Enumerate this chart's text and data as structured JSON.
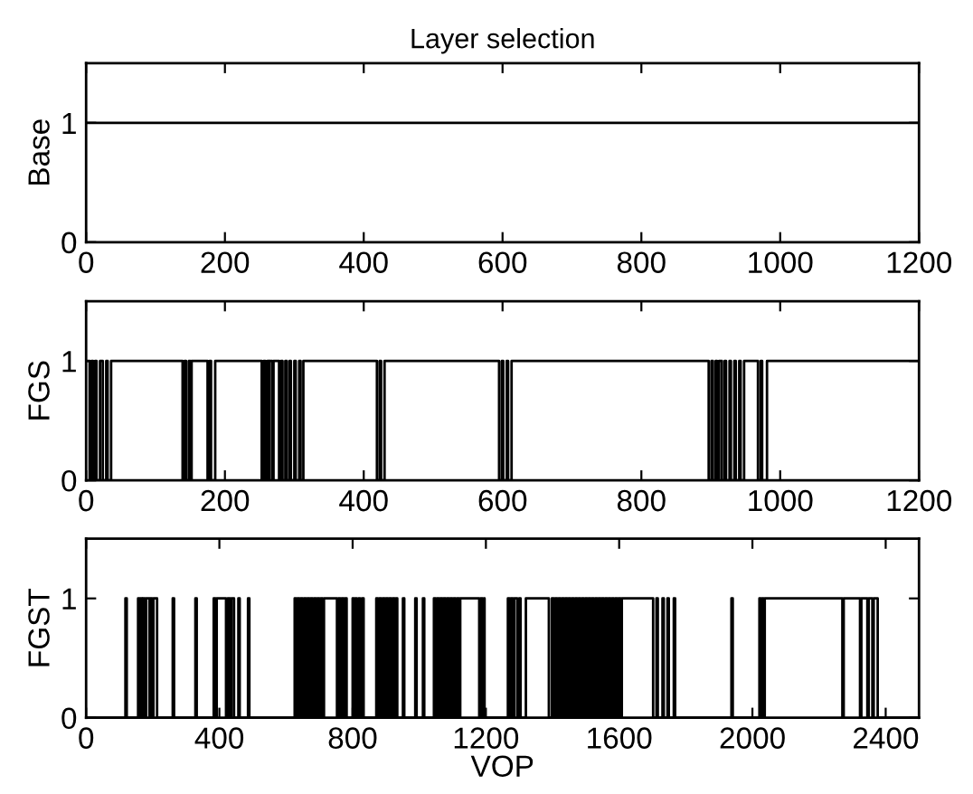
{
  "chart_data": [
    {
      "type": "line",
      "title": "Layer selection",
      "ylabel": "Base",
      "xlim": [
        0,
        1200
      ],
      "xticks": [
        0,
        200,
        400,
        600,
        800,
        1000,
        1200
      ],
      "ylim": [
        0,
        1.5
      ],
      "yticks": [
        0,
        1
      ],
      "grid": false,
      "series": [
        {
          "color": "#000000",
          "x": [
            0,
            1200
          ],
          "values": [
            1,
            1
          ]
        }
      ]
    },
    {
      "type": "step",
      "ylabel": "FGS",
      "xlim": [
        0,
        1200
      ],
      "xticks": [
        0,
        200,
        400,
        600,
        800,
        1000,
        1200
      ],
      "ylim": [
        0,
        1.5
      ],
      "yticks": [
        0,
        1
      ],
      "grid": false,
      "series": [
        {
          "color": "#000000",
          "x": [
            0,
            5,
            8,
            10,
            13,
            15,
            20,
            24,
            29,
            31,
            36,
            139,
            142,
            144,
            148,
            150,
            152,
            175,
            178,
            180,
            186,
            253,
            256,
            258,
            261,
            263,
            264,
            268,
            270,
            278,
            281,
            283,
            287,
            289,
            293,
            295,
            300,
            302,
            307,
            309,
            313,
            419,
            423,
            425,
            430,
            595,
            599,
            601,
            606,
            608,
            613,
            897,
            901,
            903,
            907,
            909,
            912,
            916,
            920,
            922,
            927,
            929,
            934,
            936,
            941,
            943,
            948,
            968,
            972,
            974,
            981,
            1200
          ],
          "values": [
            1,
            0,
            1,
            0,
            1,
            0,
            1,
            0,
            1,
            0,
            1,
            0,
            1,
            0,
            1,
            0,
            1,
            0,
            1,
            0,
            1,
            0,
            1,
            0,
            1,
            0,
            1,
            0,
            1,
            0,
            1,
            0,
            1,
            0,
            1,
            0,
            1,
            0,
            1,
            0,
            1,
            0,
            1,
            0,
            1,
            0,
            1,
            0,
            1,
            0,
            1,
            0,
            1,
            0,
            1,
            0,
            1,
            0,
            1,
            0,
            1,
            0,
            1,
            0,
            1,
            0,
            1,
            0,
            1,
            0,
            1,
            1
          ]
        }
      ]
    },
    {
      "type": "step",
      "ylabel": "FGST",
      "xlabel": "VOP",
      "xlim": [
        0,
        2500
      ],
      "xticks": [
        0,
        400,
        800,
        1200,
        1600,
        2000,
        2400
      ],
      "ylim": [
        0,
        1.5
      ],
      "yticks": [
        0,
        1
      ],
      "grid": false,
      "series": [
        {
          "color": "#000000",
          "x": [
            0,
            118,
            122,
            156,
            160,
            163,
            168,
            170,
            176,
            180,
            190,
            193,
            198,
            202,
            213,
            260,
            264,
            328,
            332,
            383,
            388,
            392,
            420,
            425,
            432,
            436,
            444,
            457,
            461,
            486,
            490,
            626,
            630,
            634,
            640,
            644,
            650,
            654,
            660,
            664,
            670,
            674,
            680,
            684,
            690,
            694,
            700,
            704,
            710,
            714,
            753,
            757,
            763,
            767,
            773,
            777,
            782,
            800,
            804,
            808,
            812,
            818,
            822,
            828,
            833,
            871,
            876,
            880,
            886,
            890,
            896,
            900,
            906,
            910,
            916,
            920,
            926,
            930,
            934,
            951,
            955,
            988,
            992,
            1011,
            1015,
            1044,
            1049,
            1053,
            1059,
            1063,
            1069,
            1073,
            1079,
            1083,
            1089,
            1093,
            1099,
            1103,
            1109,
            1113,
            1119,
            1123,
            1180,
            1184,
            1190,
            1194,
            1196,
            1266,
            1271,
            1275,
            1281,
            1285,
            1294,
            1300,
            1304,
            1320,
            1389,
            1398,
            1404,
            1408,
            1414,
            1418,
            1424,
            1428,
            1434,
            1438,
            1444,
            1448,
            1454,
            1458,
            1464,
            1468,
            1474,
            1478,
            1484,
            1488,
            1494,
            1498,
            1504,
            1508,
            1514,
            1518,
            1524,
            1528,
            1534,
            1538,
            1544,
            1548,
            1554,
            1558,
            1564,
            1568,
            1574,
            1578,
            1584,
            1588,
            1594,
            1598,
            1604,
            1608,
            1702,
            1712,
            1716,
            1730,
            1734,
            1745,
            1749,
            1764,
            1768,
            1937,
            1941,
            2021,
            2025,
            2029,
            2033,
            2037,
            2270,
            2274,
            2323,
            2327,
            2345,
            2349,
            2360,
            2364,
            2376,
            2500
          ],
          "values": [
            0,
            1,
            0,
            1,
            0,
            1,
            0,
            1,
            0,
            1,
            0,
            1,
            0,
            1,
            0,
            1,
            0,
            1,
            0,
            1,
            0,
            1,
            0,
            1,
            0,
            1,
            0,
            1,
            0,
            1,
            0,
            1,
            0,
            1,
            0,
            1,
            0,
            1,
            0,
            1,
            0,
            1,
            0,
            1,
            0,
            1,
            0,
            1,
            0,
            1,
            0,
            1,
            0,
            1,
            0,
            1,
            0,
            1,
            0,
            1,
            0,
            1,
            0,
            1,
            0,
            1,
            0,
            1,
            0,
            1,
            0,
            1,
            0,
            1,
            0,
            1,
            0,
            1,
            0,
            1,
            0,
            1,
            0,
            1,
            0,
            1,
            0,
            1,
            0,
            1,
            0,
            1,
            0,
            1,
            0,
            1,
            0,
            1,
            0,
            1,
            0,
            1,
            0,
            1,
            0,
            1,
            0,
            1,
            0,
            1,
            0,
            1,
            0,
            1,
            0,
            1,
            0,
            1,
            0,
            1,
            0,
            1,
            0,
            1,
            0,
            1,
            0,
            1,
            0,
            1,
            0,
            1,
            0,
            1,
            0,
            1,
            0,
            1,
            0,
            1,
            0,
            1,
            0,
            1,
            0,
            1,
            0,
            1,
            0,
            1,
            0,
            1,
            0,
            1,
            0,
            1,
            0,
            1,
            0,
            1,
            0,
            1,
            0,
            1,
            0,
            1,
            0,
            1,
            0,
            1,
            0,
            1,
            0,
            1,
            0,
            1,
            0,
            1,
            0,
            1,
            0,
            1,
            0,
            1,
            0,
            0
          ]
        }
      ]
    }
  ]
}
